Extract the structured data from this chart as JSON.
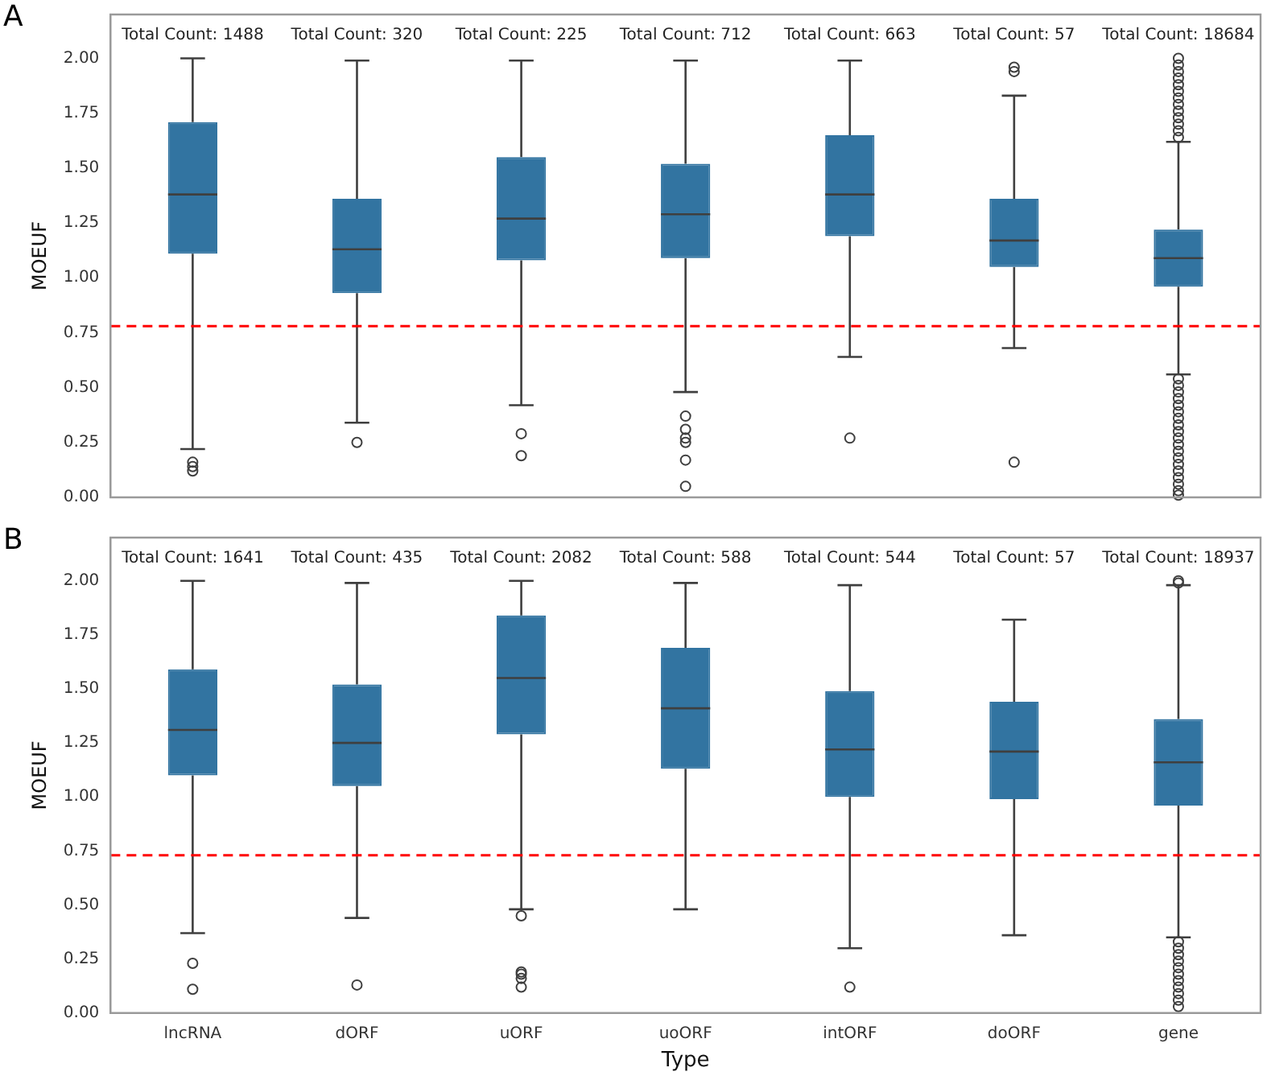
{
  "chart_data": [
    {
      "type": "box",
      "ylabel": "MOEUF",
      "color": "#3274a1",
      "grid": false,
      "tick_labels": "y",
      "categories": [
        null,
        null,
        null,
        null,
        null,
        null,
        null
      ],
      "ylim": [
        0,
        2.2
      ],
      "yticks": [
        {
          "value": 0,
          "label": "0.00"
        },
        {
          "value": 0.25,
          "label": "0.25"
        },
        {
          "value": 0.5,
          "label": "0.50"
        },
        {
          "value": 0.75,
          "label": "0.75"
        },
        {
          "value": 1,
          "label": "1.00"
        },
        {
          "value": 1.25,
          "label": "1.25"
        },
        {
          "value": 1.5,
          "label": "1.50"
        },
        {
          "value": 1.75,
          "label": "1.75"
        },
        {
          "value": 2,
          "label": "2.00"
        }
      ],
      "boxes": [
        {
          "low": 0.22,
          "q1": 1.11,
          "median": 1.38,
          "q3": 1.71,
          "high": 2.0,
          "outliers": [
            0.16,
            0.14,
            0.12
          ]
        },
        {
          "low": 0.34,
          "q1": 0.93,
          "median": 1.13,
          "q3": 1.36,
          "high": 1.99,
          "outliers": [
            0.25
          ]
        },
        {
          "low": 0.42,
          "q1": 1.08,
          "median": 1.27,
          "q3": 1.55,
          "high": 1.99,
          "outliers": [
            0.29,
            0.19
          ]
        },
        {
          "low": 0.48,
          "q1": 1.09,
          "median": 1.29,
          "q3": 1.52,
          "high": 1.99,
          "outliers": [
            0.37,
            0.31,
            0.27,
            0.25,
            0.17,
            0.05
          ]
        },
        {
          "low": 0.64,
          "q1": 1.19,
          "median": 1.38,
          "q3": 1.65,
          "high": 1.99,
          "outliers": [
            0.27
          ]
        },
        {
          "low": 0.68,
          "q1": 1.05,
          "median": 1.17,
          "q3": 1.36,
          "high": 1.83,
          "outliers": [
            1.96,
            1.94,
            0.16
          ]
        },
        {
          "low": 0.56,
          "q1": 0.96,
          "median": 1.09,
          "q3": 1.22,
          "high": 1.62,
          "outliers": [
            1.64,
            1.67,
            1.7,
            1.73,
            1.76,
            1.79,
            1.82,
            1.85,
            1.88,
            1.91,
            1.94,
            1.97,
            2.0,
            0.54,
            0.51,
            0.48,
            0.45,
            0.42,
            0.39,
            0.36,
            0.33,
            0.3,
            0.27,
            0.24,
            0.21,
            0.18,
            0.15,
            0.12,
            0.09,
            0.06,
            0.03,
            0.01
          ]
        }
      ],
      "ref_lines": [
        {
          "axis": "y",
          "value": 0.78,
          "color": "#ff0000",
          "line_style": "dashed"
        }
      ],
      "title": "A",
      "annotations": [
        "Total Count: 1488",
        "Total Count: 320",
        "Total Count: 225",
        "Total Count: 712",
        "Total Count: 663",
        "Total Count: 57",
        "Total Count: 18684"
      ]
    },
    {
      "type": "box",
      "ylabel": "MOEUF",
      "xlabel": "Type",
      "color": "#3274a1",
      "grid": false,
      "categories": [
        "lncRNA",
        "dORF",
        "uORF",
        "uoORF",
        "intORF",
        "doORF",
        "gene"
      ],
      "ylim": [
        0,
        2.2
      ],
      "yticks": [
        {
          "value": 0,
          "label": "0.00"
        },
        {
          "value": 0.25,
          "label": "0.25"
        },
        {
          "value": 0.5,
          "label": "0.50"
        },
        {
          "value": 0.75,
          "label": "0.75"
        },
        {
          "value": 1,
          "label": "1.00"
        },
        {
          "value": 1.25,
          "label": "1.25"
        },
        {
          "value": 1.5,
          "label": "1.50"
        },
        {
          "value": 1.75,
          "label": "1.75"
        },
        {
          "value": 2,
          "label": "2.00"
        }
      ],
      "boxes": [
        {
          "low": 0.37,
          "q1": 1.1,
          "median": 1.31,
          "q3": 1.59,
          "high": 2.0,
          "outliers": [
            0.23,
            0.11
          ]
        },
        {
          "low": 0.44,
          "q1": 1.05,
          "median": 1.25,
          "q3": 1.52,
          "high": 1.99,
          "outliers": [
            0.13
          ]
        },
        {
          "low": 0.48,
          "q1": 1.29,
          "median": 1.55,
          "q3": 1.84,
          "high": 2.0,
          "outliers": [
            0.45,
            0.19,
            0.18,
            0.16,
            0.12
          ]
        },
        {
          "low": 0.48,
          "q1": 1.13,
          "median": 1.41,
          "q3": 1.69,
          "high": 1.99
        },
        {
          "low": 0.3,
          "q1": 1.0,
          "median": 1.22,
          "q3": 1.49,
          "high": 1.98,
          "outliers": [
            0.12
          ]
        },
        {
          "low": 0.36,
          "q1": 0.99,
          "median": 1.21,
          "q3": 1.44,
          "high": 1.82
        },
        {
          "low": 0.35,
          "q1": 0.96,
          "median": 1.16,
          "q3": 1.36,
          "high": 1.98,
          "outliers": [
            1.99,
            2.0,
            0.33,
            0.3,
            0.27,
            0.24,
            0.21,
            0.18,
            0.15,
            0.12,
            0.09,
            0.06,
            0.03
          ]
        }
      ],
      "ref_lines": [
        {
          "axis": "y",
          "value": 0.73,
          "color": "#ff0000",
          "line_style": "dashed"
        }
      ],
      "title": "B",
      "annotations": [
        "Total Count: 1641",
        "Total Count: 435",
        "Total Count: 2082",
        "Total Count: 588",
        "Total Count: 544",
        "Total Count: 57",
        "Total Count: 18937"
      ]
    }
  ]
}
